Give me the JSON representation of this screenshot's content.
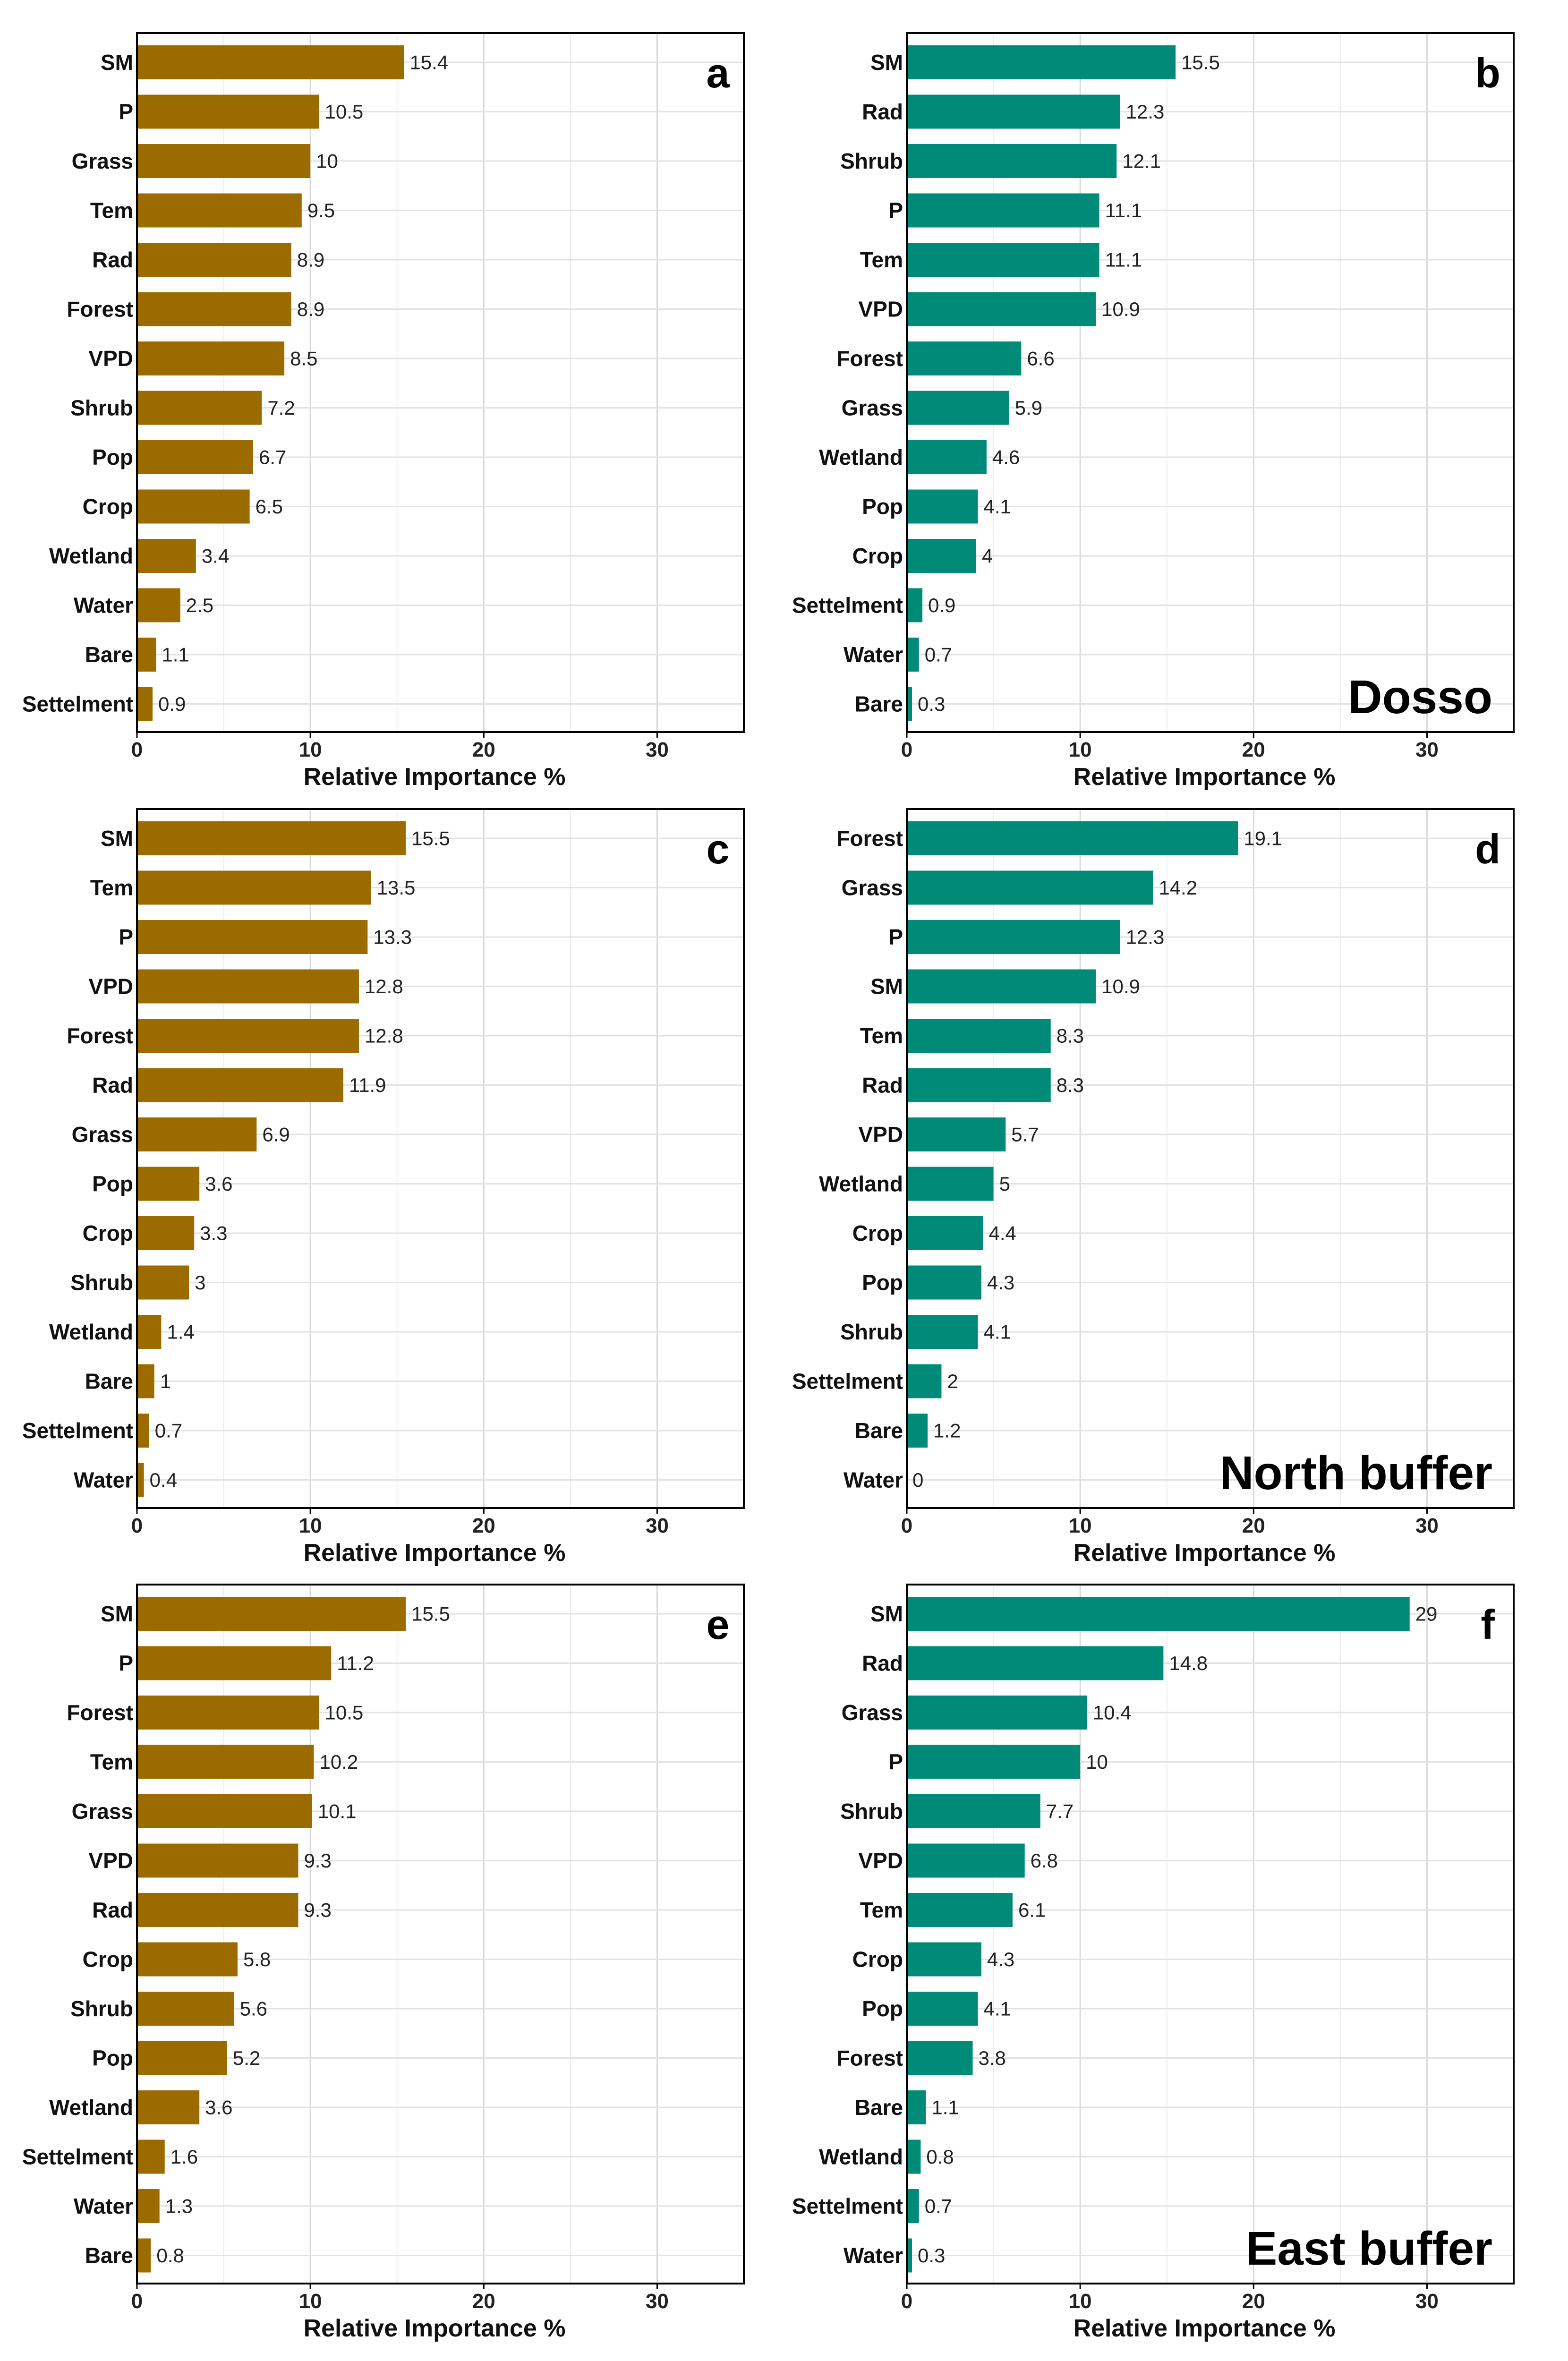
{
  "colors": {
    "left_panels": "#9b6b00",
    "right_panels": "#008a78"
  },
  "chart_data": [
    {
      "type": "bar",
      "orientation": "horizontal",
      "panel": "a",
      "region": "",
      "xlabel": "Relative Importance %",
      "xlim": [
        0,
        35
      ],
      "xticks": [
        0,
        10,
        20,
        30
      ],
      "categories": [
        "SM",
        "P",
        "Grass",
        "Tem",
        "Rad",
        "Forest",
        "VPD",
        "Shrub",
        "Pop",
        "Crop",
        "Wetland",
        "Water",
        "Bare",
        "Settelment"
      ],
      "values": [
        15.4,
        10.5,
        10,
        9.5,
        8.9,
        8.9,
        8.5,
        7.2,
        6.7,
        6.5,
        3.4,
        2.5,
        1.1,
        0.9
      ],
      "labels": [
        "15.4",
        "10.5",
        "10",
        "9.5",
        "8.9",
        "8.9",
        "8.5",
        "7.2",
        "6.7",
        "6.5",
        "3.4",
        "2.5",
        "1.1",
        "0.9"
      ],
      "color": "#9b6b00"
    },
    {
      "type": "bar",
      "orientation": "horizontal",
      "panel": "b",
      "region": "Dosso",
      "xlabel": "Relative Importance %",
      "xlim": [
        0,
        35
      ],
      "xticks": [
        0,
        10,
        20,
        30
      ],
      "categories": [
        "SM",
        "Rad",
        "Shrub",
        "P",
        "Tem",
        "VPD",
        "Forest",
        "Grass",
        "Wetland",
        "Pop",
        "Crop",
        "Settelment",
        "Water",
        "Bare"
      ],
      "values": [
        15.5,
        12.3,
        12.1,
        11.1,
        11.1,
        10.9,
        6.6,
        5.9,
        4.6,
        4.1,
        4,
        0.9,
        0.7,
        0.3
      ],
      "labels": [
        "15.5",
        "12.3",
        "12.1",
        "11.1",
        "11.1",
        "10.9",
        "6.6",
        "5.9",
        "4.6",
        "4.1",
        "4",
        "0.9",
        "0.7",
        "0.3"
      ],
      "color": "#008a78"
    },
    {
      "type": "bar",
      "orientation": "horizontal",
      "panel": "c",
      "region": "",
      "xlabel": "Relative Importance %",
      "xlim": [
        0,
        35
      ],
      "xticks": [
        0,
        10,
        20,
        30
      ],
      "categories": [
        "SM",
        "Tem",
        "P",
        "VPD",
        "Forest",
        "Rad",
        "Grass",
        "Pop",
        "Crop",
        "Shrub",
        "Wetland",
        "Bare",
        "Settelment",
        "Water"
      ],
      "values": [
        15.5,
        13.5,
        13.3,
        12.8,
        12.8,
        11.9,
        6.9,
        3.6,
        3.3,
        3,
        1.4,
        1,
        0.7,
        0.4
      ],
      "labels": [
        "15.5",
        "13.5",
        "13.3",
        "12.8",
        "12.8",
        "11.9",
        "6.9",
        "3.6",
        "3.3",
        "3",
        "1.4",
        "1",
        "0.7",
        "0.4"
      ],
      "color": "#9b6b00"
    },
    {
      "type": "bar",
      "orientation": "horizontal",
      "panel": "d",
      "region": "North buffer",
      "xlabel": "Relative Importance %",
      "xlim": [
        0,
        35
      ],
      "xticks": [
        0,
        10,
        20,
        30
      ],
      "categories": [
        "Forest",
        "Grass",
        "P",
        "SM",
        "Tem",
        "Rad",
        "VPD",
        "Wetland",
        "Crop",
        "Pop",
        "Shrub",
        "Settelment",
        "Bare",
        "Water"
      ],
      "values": [
        19.1,
        14.2,
        12.3,
        10.9,
        8.3,
        8.3,
        5.7,
        5,
        4.4,
        4.3,
        4.1,
        2,
        1.2,
        0
      ],
      "labels": [
        "19.1",
        "14.2",
        "12.3",
        "10.9",
        "8.3",
        "8.3",
        "5.7",
        "5",
        "4.4",
        "4.3",
        "4.1",
        "2",
        "1.2",
        "0"
      ],
      "color": "#008a78"
    },
    {
      "type": "bar",
      "orientation": "horizontal",
      "panel": "e",
      "region": "",
      "xlabel": "Relative Importance %",
      "xlim": [
        0,
        35
      ],
      "xticks": [
        0,
        10,
        20,
        30
      ],
      "categories": [
        "SM",
        "P",
        "Forest",
        "Tem",
        "Grass",
        "VPD",
        "Rad",
        "Crop",
        "Shrub",
        "Pop",
        "Wetland",
        "Settelment",
        "Water",
        "Bare"
      ],
      "values": [
        15.5,
        11.2,
        10.5,
        10.2,
        10.1,
        9.3,
        9.3,
        5.8,
        5.6,
        5.2,
        3.6,
        1.6,
        1.3,
        0.8
      ],
      "labels": [
        "15.5",
        "11.2",
        "10.5",
        "10.2",
        "10.1",
        "9.3",
        "9.3",
        "5.8",
        "5.6",
        "5.2",
        "3.6",
        "1.6",
        "1.3",
        "0.8"
      ],
      "color": "#9b6b00"
    },
    {
      "type": "bar",
      "orientation": "horizontal",
      "panel": "f",
      "region": "East buffer",
      "xlabel": "Relative Importance %",
      "xlim": [
        0,
        35
      ],
      "xticks": [
        0,
        10,
        20,
        30
      ],
      "categories": [
        "SM",
        "Rad",
        "Grass",
        "P",
        "Shrub",
        "VPD",
        "Tem",
        "Crop",
        "Pop",
        "Forest",
        "Bare",
        "Wetland",
        "Settelment",
        "Water"
      ],
      "values": [
        29,
        14.8,
        10.4,
        10,
        7.7,
        6.8,
        6.1,
        4.3,
        4.1,
        3.8,
        1.1,
        0.8,
        0.7,
        0.3
      ],
      "labels": [
        "29",
        "14.8",
        "10.4",
        "10",
        "7.7",
        "6.8",
        "6.1",
        "4.3",
        "4.1",
        "3.8",
        "1.1",
        "0.8",
        "0.7",
        "0.3"
      ],
      "color": "#008a78"
    }
  ]
}
